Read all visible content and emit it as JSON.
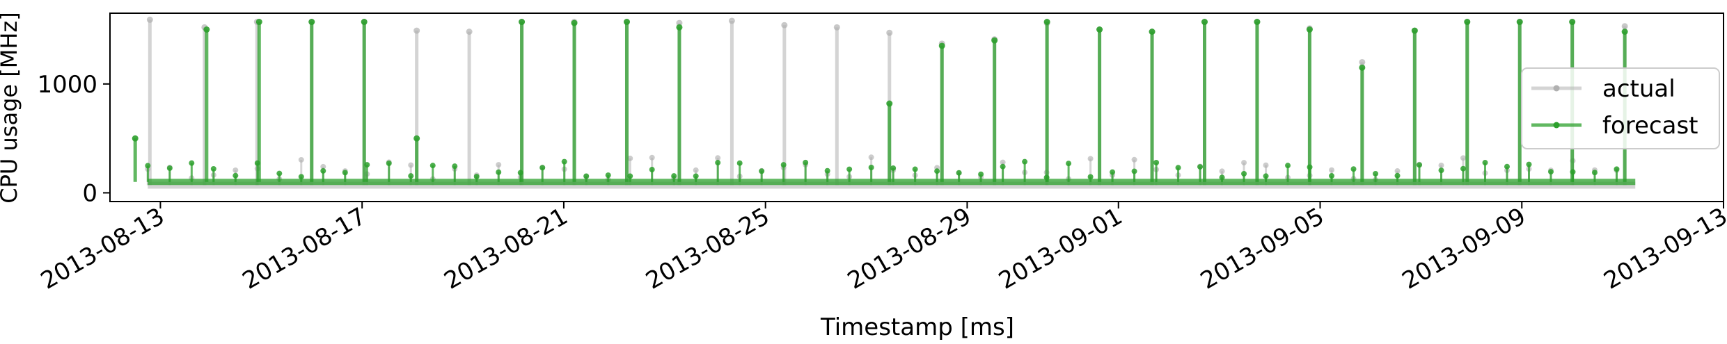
{
  "chart_data": {
    "type": "line",
    "xlabel": "Timestamp [ms]",
    "ylabel": "CPU usage [MHz]",
    "x_start": "2013-08-12",
    "x_end": "2013-09-13",
    "xlim": [
      "2013-08-12",
      "2013-09-13"
    ],
    "ylim": [
      -80,
      1650
    ],
    "x_ticks": [
      "2013-08-13",
      "2013-08-17",
      "2013-08-21",
      "2013-08-25",
      "2013-08-29",
      "2013-09-01",
      "2013-09-05",
      "2013-09-09",
      "2013-09-13"
    ],
    "y_ticks": [
      0,
      1000
    ],
    "grid": false,
    "legend_position": "right",
    "series": [
      {
        "name": "actual",
        "color": "#b0b0b0",
        "baseline": 70,
        "spikes": [
          [
            "2013-08-12T19:00",
            1590
          ],
          [
            "2013-08-13T21:00",
            1520
          ],
          [
            "2013-08-14T22:00",
            1570
          ],
          [
            "2013-08-16T00:00",
            1570
          ],
          [
            "2013-08-17T01:00",
            1570
          ],
          [
            "2013-08-18T02:00",
            1490
          ],
          [
            "2013-08-19T03:00",
            1480
          ],
          [
            "2013-08-20T04:00",
            1570
          ],
          [
            "2013-08-21T05:00",
            1570
          ],
          [
            "2013-08-22T06:00",
            1570
          ],
          [
            "2013-08-23T07:00",
            1560
          ],
          [
            "2013-08-24T08:00",
            1580
          ],
          [
            "2013-08-25T09:00",
            1540
          ],
          [
            "2013-08-26T10:00",
            1520
          ],
          [
            "2013-08-27T11:00",
            1470
          ],
          [
            "2013-08-28T12:00",
            1370
          ],
          [
            "2013-08-29T13:00",
            1410
          ],
          [
            "2013-08-30T14:00",
            1560
          ],
          [
            "2013-08-31T15:00",
            1500
          ],
          [
            "2013-09-01T16:00",
            1480
          ],
          [
            "2013-09-02T17:00",
            1570
          ],
          [
            "2013-09-03T18:00",
            1570
          ],
          [
            "2013-09-04T19:00",
            1510
          ],
          [
            "2013-09-05T20:00",
            1200
          ],
          [
            "2013-09-06T21:00",
            1490
          ],
          [
            "2013-09-07T22:00",
            1570
          ],
          [
            "2013-09-08T23:00",
            1570
          ],
          [
            "2013-09-10T00:00",
            1570
          ],
          [
            "2013-09-11T01:00",
            1530
          ]
        ]
      },
      {
        "name": "forecast",
        "color": "#2ca02c",
        "baseline": 100,
        "spikes": [
          [
            "2013-08-12T12:00",
            500
          ],
          [
            "2013-08-13T22:00",
            1500
          ],
          [
            "2013-08-14T23:00",
            1570
          ],
          [
            "2013-08-16T00:00",
            1570
          ],
          [
            "2013-08-17T01:00",
            1570
          ],
          [
            "2013-08-18T02:00",
            500
          ],
          [
            "2013-08-20T04:00",
            1570
          ],
          [
            "2013-08-21T05:00",
            1560
          ],
          [
            "2013-08-22T06:00",
            1570
          ],
          [
            "2013-08-23T07:00",
            1520
          ],
          [
            "2013-08-27T11:00",
            820
          ],
          [
            "2013-08-28T12:00",
            1350
          ],
          [
            "2013-08-29T13:00",
            1400
          ],
          [
            "2013-08-30T14:00",
            1570
          ],
          [
            "2013-08-31T15:00",
            1500
          ],
          [
            "2013-09-01T16:00",
            1480
          ],
          [
            "2013-09-02T17:00",
            1570
          ],
          [
            "2013-09-03T18:00",
            1570
          ],
          [
            "2013-09-04T19:00",
            1500
          ],
          [
            "2013-09-05T20:00",
            1150
          ],
          [
            "2013-09-06T21:00",
            1490
          ],
          [
            "2013-09-07T22:00",
            1570
          ],
          [
            "2013-09-08T23:00",
            1570
          ],
          [
            "2013-09-10T00:00",
            1570
          ],
          [
            "2013-09-11T01:00",
            1480
          ]
        ]
      }
    ],
    "legend": [
      "actual",
      "forecast"
    ]
  }
}
